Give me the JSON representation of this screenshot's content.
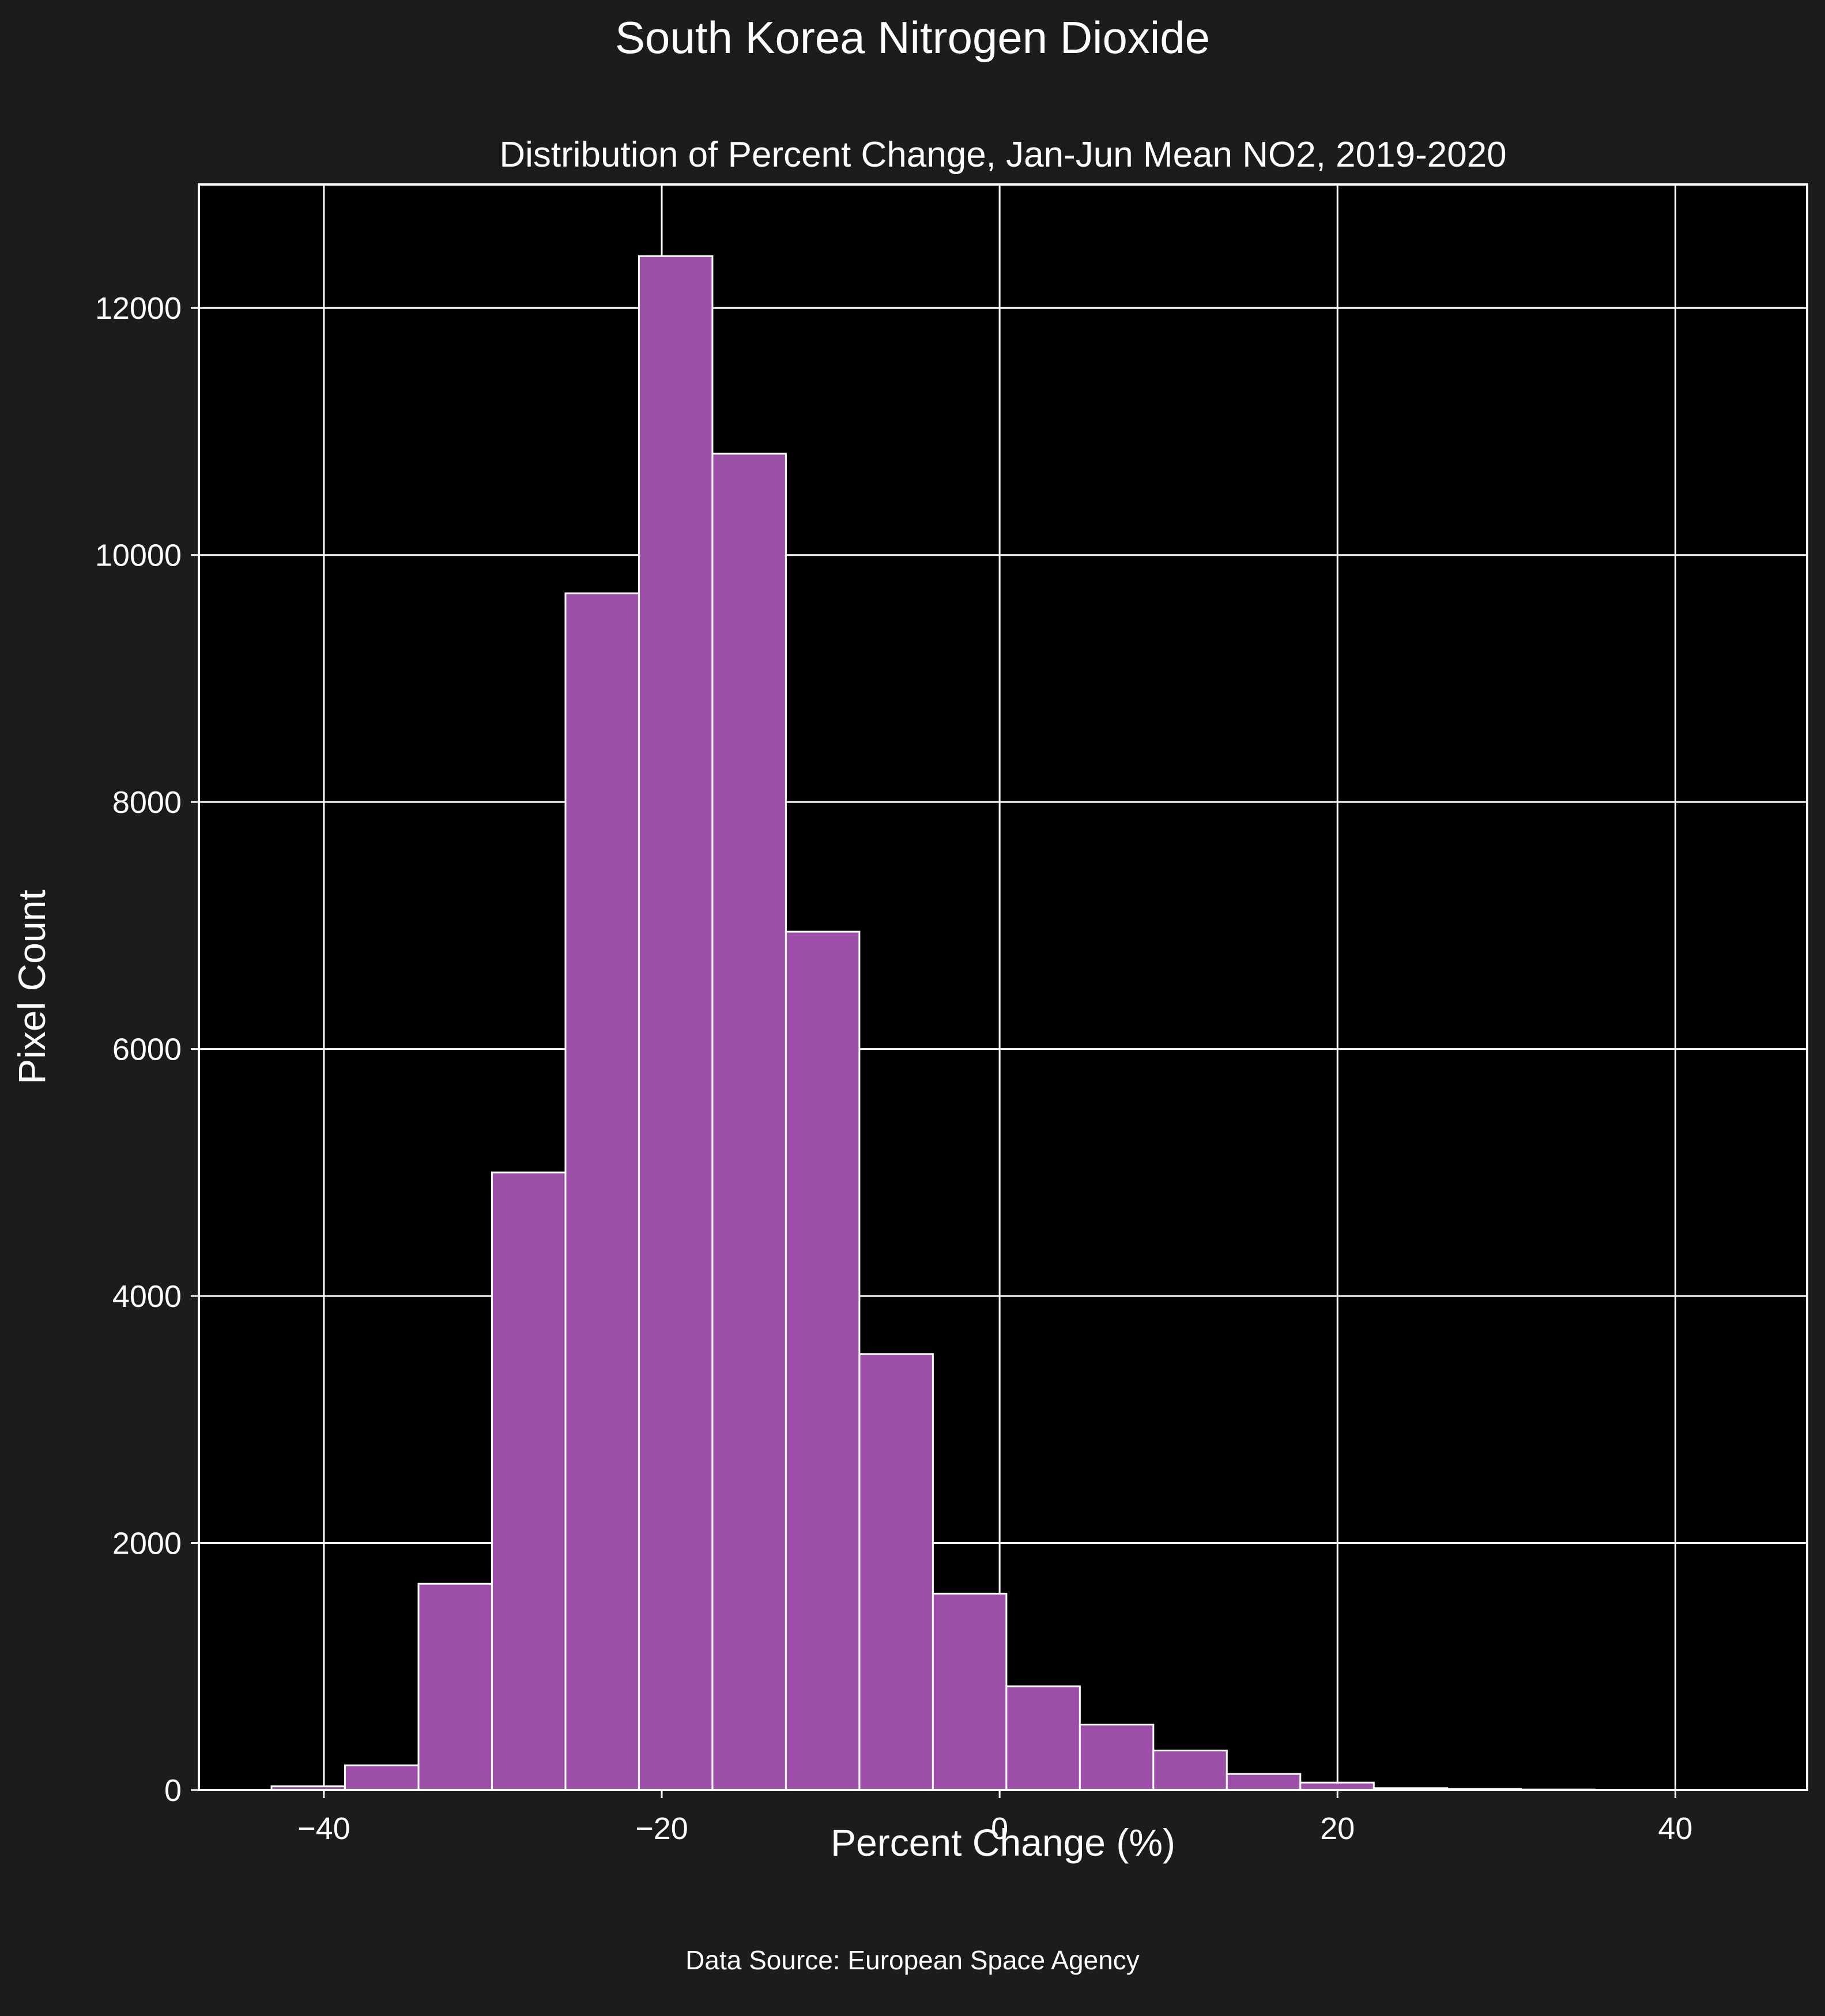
{
  "figure": {
    "suptitle": "South Korea Nitrogen Dioxide",
    "source": "Data Source: European Space Agency"
  },
  "colors": {
    "figure_background": "#1c1c1c",
    "axes_background": "#000000",
    "bar_fill": "#9b4fa6",
    "bar_edge": "#ffffff",
    "grid": "#ffffff",
    "text": "#ffffff"
  },
  "chart_data": {
    "type": "bar",
    "subtype": "histogram",
    "title": "Distribution of Percent Change, Jan-Jun Mean NO2, 2019-2020",
    "xlabel": "Percent Change (%)",
    "ylabel": "Pixel Count",
    "xlim": [
      -47.4,
      47.8
    ],
    "ylim": [
      0,
      13000
    ],
    "xticks": [
      -40,
      -20,
      0,
      20,
      40
    ],
    "xtick_labels": [
      "−40",
      "−20",
      "0",
      "20",
      "40"
    ],
    "yticks": [
      0,
      2000,
      4000,
      6000,
      8000,
      10000,
      12000
    ],
    "ytick_labels": [
      "0",
      "2000",
      "4000",
      "6000",
      "8000",
      "10000",
      "12000"
    ],
    "grid": true,
    "bin_edges": [
      -43.1,
      -38.75,
      -34.4,
      -30.05,
      -25.7,
      -21.35,
      -17.0,
      -12.65,
      -8.3,
      -3.95,
      0.4,
      4.75,
      9.1,
      13.45,
      17.8,
      22.15,
      26.5,
      30.85,
      35.2,
      39.55,
      43.9
    ],
    "counts": [
      30,
      200,
      1670,
      5000,
      9690,
      12420,
      10820,
      6950,
      3530,
      1590,
      840,
      530,
      320,
      130,
      60,
      15,
      8,
      4,
      2,
      1
    ]
  }
}
